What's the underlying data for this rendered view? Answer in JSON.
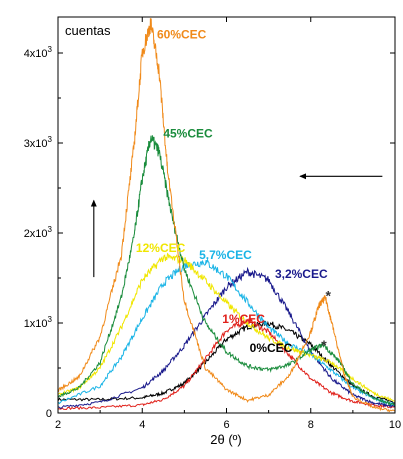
{
  "chart_data": {
    "type": "line",
    "ylabel_inside": "cuentas",
    "xlabel": "2θ (º)",
    "xlim": [
      2,
      10
    ],
    "ylim": [
      0,
      4400
    ],
    "x_ticks": [
      {
        "value": 2,
        "label": "2"
      },
      {
        "value": 4,
        "label": "4"
      },
      {
        "value": 6,
        "label": "6"
      },
      {
        "value": 8,
        "label": "8"
      },
      {
        "value": 10,
        "label": "10"
      }
    ],
    "y_ticks": [
      {
        "value": 0,
        "base": "0",
        "exp": ""
      },
      {
        "value": 1000,
        "base": "1x10",
        "exp": "3"
      },
      {
        "value": 2000,
        "base": "2x10",
        "exp": "3"
      },
      {
        "value": 3000,
        "base": "3x10",
        "exp": "3"
      },
      {
        "value": 4000,
        "base": "4x10",
        "exp": "3"
      }
    ],
    "grid": false,
    "series": [
      {
        "name": "0%CEC",
        "color": "#000000",
        "x": [
          2,
          3,
          4,
          4.5,
          5,
          5.5,
          6,
          6.5,
          7,
          7.5,
          8,
          8.5,
          9,
          9.5,
          10
        ],
        "y": [
          150,
          150,
          170,
          220,
          330,
          560,
          820,
          960,
          1000,
          910,
          760,
          520,
          300,
          180,
          120
        ]
      },
      {
        "name": "1%CEC",
        "color": "#e0201a",
        "x": [
          2,
          3,
          4,
          4.5,
          5,
          5.5,
          6,
          6.5,
          7,
          7.5,
          8,
          8.5,
          9,
          9.5,
          10
        ],
        "y": [
          50,
          60,
          90,
          150,
          300,
          600,
          920,
          1030,
          900,
          640,
          380,
          220,
          130,
          90,
          60
        ]
      },
      {
        "name": "3,2%CEC",
        "color": "#1a1a8c",
        "x": [
          2,
          3,
          4,
          4.5,
          5,
          5.5,
          6,
          6.5,
          7,
          7.5,
          8,
          8.5,
          9,
          9.5,
          10
        ],
        "y": [
          60,
          120,
          280,
          470,
          750,
          1080,
          1400,
          1570,
          1480,
          1100,
          680,
          380,
          200,
          110,
          70
        ]
      },
      {
        "name": "5.7%CEC",
        "color": "#1ab4e6",
        "x": [
          2,
          3,
          3.5,
          4,
          4.5,
          5,
          5.5,
          6,
          6.5,
          7,
          7.5,
          8,
          8.5,
          9,
          9.5,
          10
        ],
        "y": [
          110,
          300,
          620,
          1050,
          1440,
          1640,
          1680,
          1520,
          1230,
          950,
          760,
          650,
          470,
          280,
          160,
          90
        ]
      },
      {
        "name": "12%CEC",
        "color": "#f0e600",
        "x": [
          2,
          2.5,
          3,
          3.5,
          4,
          4.5,
          5,
          5.5,
          6,
          6.5,
          7,
          7.5,
          8,
          8.5,
          9,
          9.5,
          10
        ],
        "y": [
          200,
          280,
          500,
          950,
          1480,
          1730,
          1700,
          1470,
          1220,
          1000,
          830,
          720,
          640,
          560,
          380,
          220,
          130
        ]
      },
      {
        "name": "45%CEC",
        "color": "#1a8c3c",
        "x": [
          2,
          2.5,
          3,
          3.5,
          3.8,
          4,
          4.2,
          4.4,
          4.7,
          5,
          5.5,
          6,
          6.5,
          7,
          7.5,
          8,
          8.3,
          8.7,
          9,
          9.5,
          10
        ],
        "y": [
          180,
          280,
          560,
          1280,
          1950,
          2600,
          3060,
          2900,
          2200,
          1600,
          1000,
          680,
          520,
          480,
          540,
          700,
          760,
          560,
          320,
          160,
          90
        ]
      },
      {
        "name": "60%CEC",
        "color": "#f08a1a",
        "x": [
          2,
          2.5,
          3,
          3.5,
          3.8,
          4,
          4.2,
          4.4,
          4.6,
          5,
          5.5,
          6,
          6.5,
          7,
          7.5,
          8,
          8.2,
          8.35,
          8.5,
          8.8,
          9,
          9.5,
          10
        ],
        "y": [
          250,
          400,
          850,
          1750,
          2950,
          4000,
          4330,
          3800,
          2700,
          1250,
          500,
          260,
          140,
          200,
          420,
          900,
          1200,
          1280,
          1000,
          420,
          180,
          60,
          20
        ]
      }
    ],
    "series_labels": [
      {
        "text": "60%CEC",
        "color": "#f08a1a",
        "at": [
          4.35,
          4160
        ]
      },
      {
        "text": "45%CEC",
        "color": "#1a8c3c",
        "at": [
          4.5,
          3060
        ]
      },
      {
        "text": "12%CEC",
        "color": "#f0e600",
        "at": [
          3.85,
          1790
        ]
      },
      {
        "text": "5.7%CEC",
        "color": "#1ab4e6",
        "at": [
          5.35,
          1710
        ]
      },
      {
        "text": "3,2%CEC",
        "color": "#1a1a8c",
        "at": [
          7.15,
          1500
        ]
      },
      {
        "text": "1%CEC",
        "color": "#e0201a",
        "at": [
          5.9,
          1000
        ]
      },
      {
        "text": "0%CEC",
        "color": "#000000",
        "at": [
          6.55,
          680
        ]
      }
    ],
    "annotations": [
      {
        "text": "*",
        "at": [
          8.35,
          1250
        ]
      },
      {
        "text": "*",
        "at": [
          8.25,
          700
        ]
      }
    ],
    "arrows": [
      {
        "name": "up-arrow",
        "from": [
          2.85,
          1510
        ],
        "to": [
          2.85,
          2360
        ]
      },
      {
        "name": "left-arrow",
        "from": [
          9.7,
          2630
        ],
        "to": [
          7.75,
          2630
        ]
      }
    ]
  }
}
